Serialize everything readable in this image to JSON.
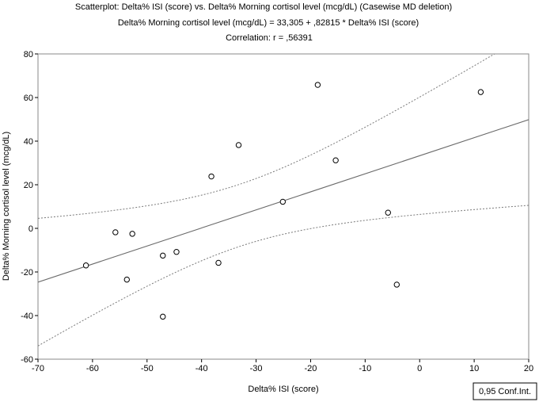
{
  "chart_data": {
    "type": "scatter",
    "title": "Scatterplot: Delta% ISI (score) vs. Delta% Morning cortisol level (mcg/dL) (Casewise MD deletion)",
    "subtitle": "Delta% Morning cortisol level (mcg/dL) = 33,305 + ,82815 * Delta% ISI (score)",
    "annotation": "Correlation: r = ,56391",
    "xlabel": "Delta% ISI (score)",
    "ylabel": "Delta% Morning cortisol level (mcg/dL)",
    "xlim": [
      -70,
      20
    ],
    "ylim": [
      -60,
      80
    ],
    "x_ticks": [
      -70,
      -60,
      -50,
      -40,
      -30,
      -20,
      -10,
      0,
      10,
      20
    ],
    "y_ticks": [
      -60,
      -40,
      -20,
      0,
      20,
      40,
      60,
      80
    ],
    "points": [
      {
        "x": -61.2,
        "y": -17
      },
      {
        "x": -55.8,
        "y": -1.8
      },
      {
        "x": -53.7,
        "y": -23.5
      },
      {
        "x": -52.7,
        "y": -2.5
      },
      {
        "x": -47.1,
        "y": -12.5
      },
      {
        "x": -47.1,
        "y": -40.5
      },
      {
        "x": -44.6,
        "y": -10.8
      },
      {
        "x": -38.2,
        "y": 23.8
      },
      {
        "x": -36.9,
        "y": -15.8
      },
      {
        "x": -33.2,
        "y": 38.2
      },
      {
        "x": -25.1,
        "y": 12.2
      },
      {
        "x": -18.7,
        "y": 65.8
      },
      {
        "x": -15.4,
        "y": 31.2
      },
      {
        "x": -5.8,
        "y": 7.2
      },
      {
        "x": -4.2,
        "y": -25.8
      },
      {
        "x": 11.2,
        "y": 62.5
      }
    ],
    "regression": {
      "intercept": 33.305,
      "slope": 0.82815
    },
    "confidence_level": 0.95,
    "legend": {
      "label": "0,95 Conf.Int.",
      "placement": "bottom-right"
    },
    "grid": false
  }
}
